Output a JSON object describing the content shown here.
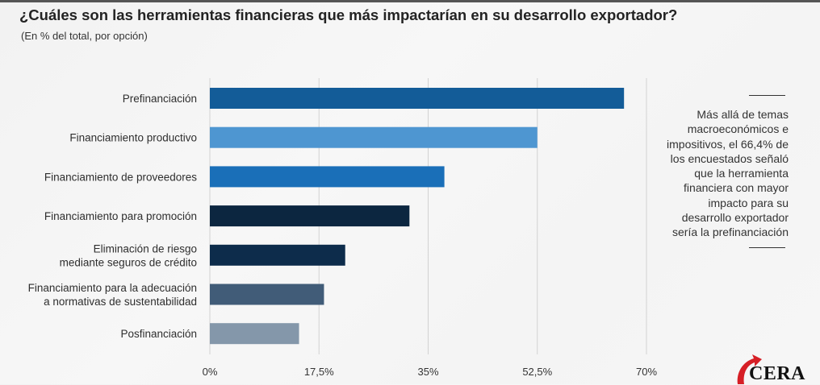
{
  "header": {
    "title": "¿Cuáles son las herramientas financieras que más impactarían en su desarrollo exportador?",
    "subtitle": "(En % del total, por opción)"
  },
  "note": {
    "text": "Más allá de temas macroeconómicos e impositivos, el 66,4% de los encuestados señaló que la herramienta financiera con mayor impacto para su desarrollo exportador sería la prefinanciación",
    "lines": [
      "Más allá de temas",
      "macroeconómicos e",
      "impositivos, el 66,4% de",
      "los encuestados señaló",
      "que la herramienta",
      "financiera con mayor",
      "impacto para su",
      "desarrollo exportador",
      "sería la prefinanciación"
    ]
  },
  "logo": {
    "text": "CERA",
    "accent_color": "#d61f26"
  },
  "chart_data": {
    "type": "bar",
    "orientation": "horizontal",
    "title": "¿Cuáles son las herramientas financieras que más impactarían en su desarrollo exportador?",
    "subtitle": "(En % del total, por opción)",
    "xlabel": "",
    "ylabel": "",
    "categories": [
      [
        "Prefinanciación"
      ],
      [
        "Financiamiento productivo"
      ],
      [
        "Financiamiento de proveedores"
      ],
      [
        "Financiamiento para promoción"
      ],
      [
        "Eliminación de riesgo",
        "mediante seguros de crédito"
      ],
      [
        "Financiamiento para la adecuación",
        "a normativas de sustentabilidad"
      ],
      [
        "Posfinanciación"
      ]
    ],
    "values": [
      66.4,
      52.5,
      37.6,
      32.0,
      21.7,
      18.3,
      14.3
    ],
    "colors": [
      "#135c98",
      "#4e96d1",
      "#1a6fb8",
      "#0c2640",
      "#0d2c4b",
      "#415c78",
      "#8497aa"
    ],
    "xlim": [
      0,
      70
    ],
    "xticks": [
      0,
      17.5,
      35,
      52.5,
      70
    ],
    "xtick_labels": [
      "0%",
      "17,5%",
      "35%",
      "52,5%",
      "70%"
    ],
    "grid": true,
    "legend": "none"
  }
}
